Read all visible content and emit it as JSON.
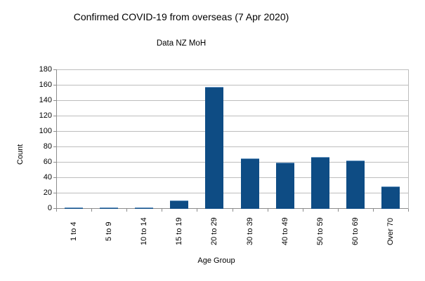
{
  "chart_data": {
    "type": "bar",
    "title": "Confirmed COVID-19 from overseas (7 Apr 2020)",
    "subtitle": "Data NZ MoH",
    "xlabel": "Age Group",
    "ylabel": "Count",
    "categories": [
      "1 to 4",
      "5 to 9",
      "10 to 14",
      "15 to 19",
      "20 to 29",
      "30 to 39",
      "40 to 49",
      "50 to 59",
      "60 to 69",
      "Over 70"
    ],
    "values": [
      1,
      1,
      1,
      11,
      158,
      65,
      60,
      67,
      63,
      29
    ],
    "ylim": [
      0,
      180
    ],
    "ytick_step": 20,
    "grid": "horizontal",
    "legend": "none",
    "colors": {
      "bar_fill": "#0e4c84",
      "bar_border": "#6d9ac4",
      "gridline": "#bdbdbd",
      "axis": "#8c8c8c",
      "text": "#000000",
      "background": "#ffffff"
    }
  }
}
